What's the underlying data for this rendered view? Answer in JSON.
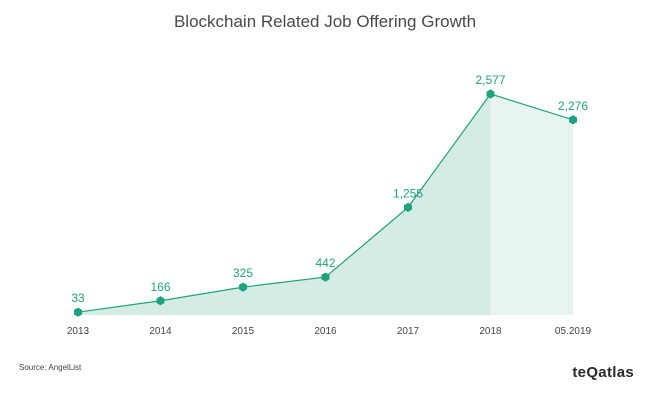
{
  "chart_data": {
    "type": "area",
    "title": "Blockchain Related Job Offering Growth",
    "categories": [
      "2013",
      "2014",
      "2015",
      "2016",
      "2017",
      "2018",
      "05.2019"
    ],
    "values": [
      33,
      166,
      325,
      442,
      1255,
      2577,
      2276
    ],
    "value_labels": [
      "33",
      "166",
      "325",
      "442",
      "1,255",
      "2,577",
      "2,276"
    ],
    "ylim": [
      0,
      2577
    ],
    "grid": false,
    "legend": "none"
  },
  "footer": {
    "source": "Source: AngelList",
    "brand": "teQatlas"
  },
  "colors": {
    "line": "#1fa37f",
    "fill": "#d4ece4",
    "fill_last": "#e8f4f0",
    "label": "#1fa37f",
    "axis": "#444444"
  }
}
